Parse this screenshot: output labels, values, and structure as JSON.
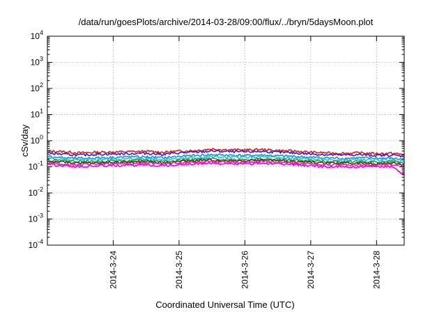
{
  "chart_data": {
    "type": "line",
    "title": "/data/run/goesPlots/archive/2014-03-28/09:00/flux/../bryn/5daysMoon.plot",
    "xlabel": "Coordinated Universal Time (UTC)",
    "ylabel": "cSv/day",
    "yscale": "log",
    "ylim": [
      0.0001,
      10000
    ],
    "xlim": [
      0,
      5.42
    ],
    "grid": true,
    "yticks": [
      {
        "base": "10",
        "exp": "-4",
        "value": 0.0001
      },
      {
        "base": "10",
        "exp": "-3",
        "value": 0.001
      },
      {
        "base": "10",
        "exp": "-2",
        "value": 0.01
      },
      {
        "base": "10",
        "exp": "-1",
        "value": 0.1
      },
      {
        "base": "10",
        "exp": "0",
        "value": 1
      },
      {
        "base": "10",
        "exp": "1",
        "value": 10
      },
      {
        "base": "10",
        "exp": "2",
        "value": 100
      },
      {
        "base": "10",
        "exp": "3",
        "value": 1000
      },
      {
        "base": "10",
        "exp": "4",
        "value": 10000
      }
    ],
    "xticks": [
      {
        "label": "2014-3-24",
        "value": 1.0
      },
      {
        "label": "2014-3-25",
        "value": 2.0
      },
      {
        "label": "2014-3-26",
        "value": 3.0
      },
      {
        "label": "2014-3-27",
        "value": 4.0
      },
      {
        "label": "2014-3-28",
        "value": 5.0
      }
    ],
    "x": [
      0.0,
      0.25,
      0.5,
      0.75,
      1.0,
      1.25,
      1.5,
      1.75,
      2.0,
      2.25,
      2.5,
      2.75,
      3.0,
      3.25,
      3.5,
      3.75,
      4.0,
      4.25,
      4.5,
      4.75,
      5.0,
      5.25,
      5.42
    ],
    "series": [
      {
        "color": "#e41a1c",
        "values": [
          0.4,
          0.38,
          0.34,
          0.36,
          0.37,
          0.38,
          0.39,
          0.36,
          0.4,
          0.42,
          0.48,
          0.45,
          0.44,
          0.46,
          0.42,
          0.4,
          0.36,
          0.34,
          0.33,
          0.34,
          0.32,
          0.33,
          0.29
        ]
      },
      {
        "color": "#2323e8",
        "values": [
          0.34,
          0.3,
          0.28,
          0.3,
          0.31,
          0.32,
          0.33,
          0.3,
          0.34,
          0.36,
          0.4,
          0.38,
          0.37,
          0.39,
          0.36,
          0.34,
          0.31,
          0.29,
          0.28,
          0.29,
          0.27,
          0.28,
          0.25
        ]
      },
      {
        "color": "#1f8fd0",
        "values": [
          0.25,
          0.22,
          0.21,
          0.22,
          0.23,
          0.24,
          0.24,
          0.22,
          0.25,
          0.27,
          0.29,
          0.28,
          0.27,
          0.28,
          0.26,
          0.25,
          0.23,
          0.22,
          0.21,
          0.22,
          0.21,
          0.21,
          0.19
        ]
      },
      {
        "color": "#22c9d6",
        "values": [
          0.21,
          0.19,
          0.18,
          0.19,
          0.2,
          0.2,
          0.21,
          0.19,
          0.21,
          0.22,
          0.24,
          0.23,
          0.23,
          0.24,
          0.22,
          0.21,
          0.2,
          0.19,
          0.18,
          0.19,
          0.18,
          0.18,
          0.17
        ]
      },
      {
        "color": "#2e9e3a",
        "values": [
          0.18,
          0.17,
          0.16,
          0.16,
          0.17,
          0.17,
          0.18,
          0.16,
          0.18,
          0.19,
          0.2,
          0.19,
          0.19,
          0.2,
          0.19,
          0.18,
          0.17,
          0.16,
          0.16,
          0.16,
          0.15,
          0.16,
          0.14
        ]
      },
      {
        "color": "#5a2a1a",
        "values": [
          0.16,
          0.15,
          0.14,
          0.14,
          0.15,
          0.15,
          0.16,
          0.14,
          0.16,
          0.17,
          0.18,
          0.17,
          0.17,
          0.18,
          0.17,
          0.16,
          0.15,
          0.14,
          0.14,
          0.14,
          0.13,
          0.14,
          0.12
        ]
      },
      {
        "color": "#e01f9e",
        "values": [
          0.14,
          0.13,
          0.12,
          0.13,
          0.13,
          0.13,
          0.14,
          0.13,
          0.14,
          0.15,
          0.16,
          0.15,
          0.15,
          0.16,
          0.15,
          0.14,
          0.13,
          0.12,
          0.12,
          0.12,
          0.12,
          0.12,
          0.11
        ]
      },
      {
        "color": "#f000f0",
        "values": [
          0.12,
          0.11,
          0.1,
          0.11,
          0.11,
          0.11,
          0.12,
          0.11,
          0.12,
          0.13,
          0.14,
          0.13,
          0.13,
          0.14,
          0.13,
          0.12,
          0.11,
          0.1,
          0.1,
          0.1,
          0.1,
          0.1,
          0.05
        ]
      }
    ]
  }
}
